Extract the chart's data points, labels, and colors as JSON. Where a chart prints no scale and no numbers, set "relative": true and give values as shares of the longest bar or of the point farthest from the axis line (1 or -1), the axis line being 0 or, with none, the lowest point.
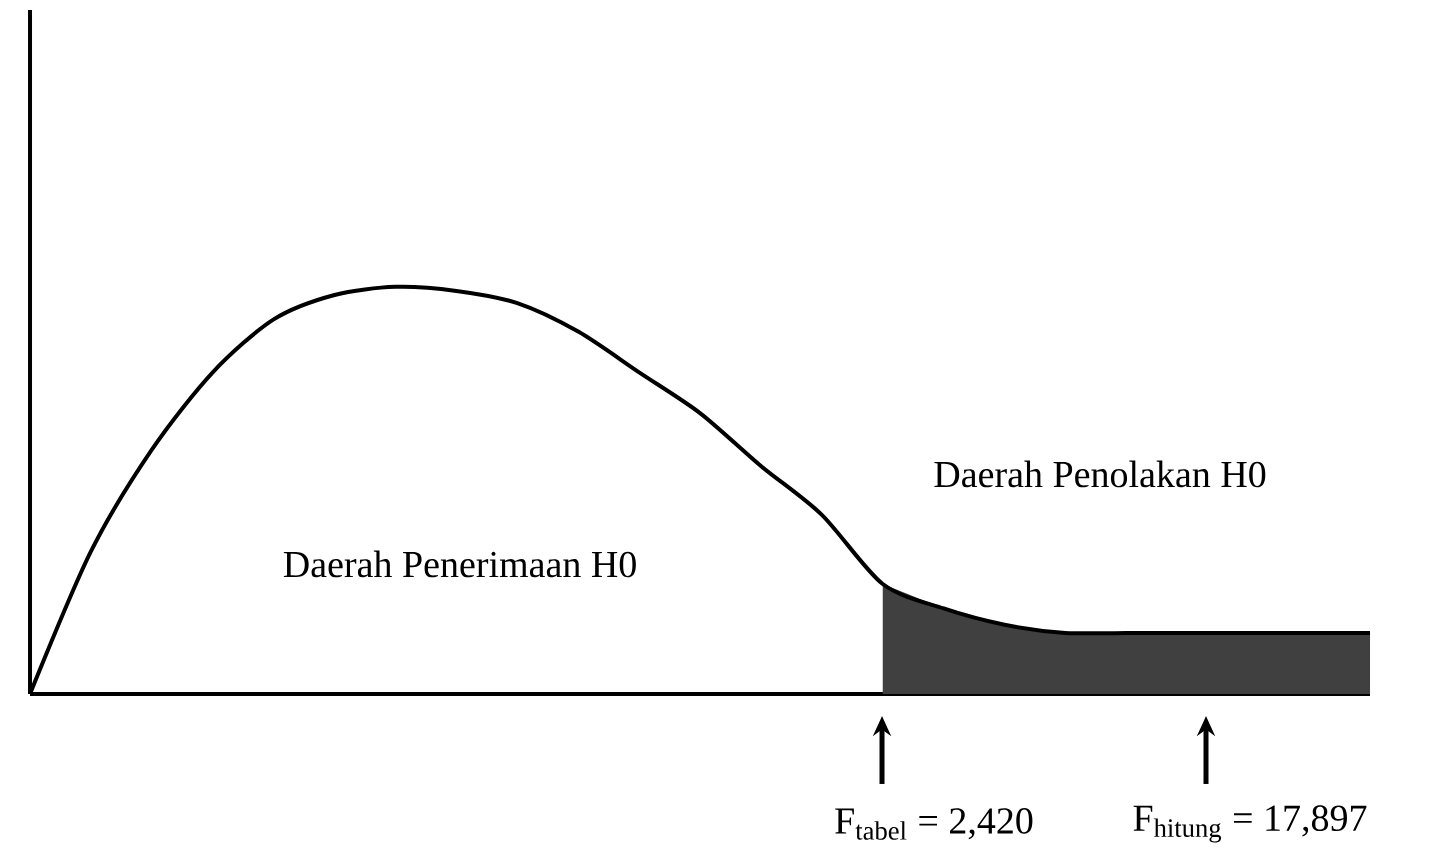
{
  "chart_data": {
    "type": "line",
    "relative": true,
    "categories": [
      null,
      null,
      null,
      null,
      null,
      null,
      null,
      null,
      null,
      null,
      null,
      null,
      null,
      null,
      null,
      null,
      null,
      null,
      null,
      null,
      null,
      null,
      null
    ],
    "series": [
      {
        "color": "#000000",
        "values": [
          0,
          0.35,
          0.6,
          0.79,
          0.92,
          0.98,
          1,
          0.99,
          0.96,
          0.89,
          0.79,
          0.69,
          0.56,
          0.44,
          0.27,
          0.21,
          0.17,
          0.15,
          0.15,
          0.15,
          0.15,
          0.15,
          0.15
        ]
      },
      {
        "type": "area",
        "color": "#404040",
        "values": [
          null,
          null,
          null,
          null,
          null,
          null,
          null,
          null,
          null,
          null,
          null,
          null,
          null,
          null,
          0.27,
          0.21,
          0.17,
          0.15,
          0.15,
          0.15,
          0.15,
          0.15,
          0.15
        ]
      }
    ],
    "annotations": [
      "Daerah Penerimaan H0",
      "Daerah Penolakan H0",
      "F$_{tabel}$ = 2,420",
      "F$_{hitung}$ = 17,897"
    ]
  }
}
